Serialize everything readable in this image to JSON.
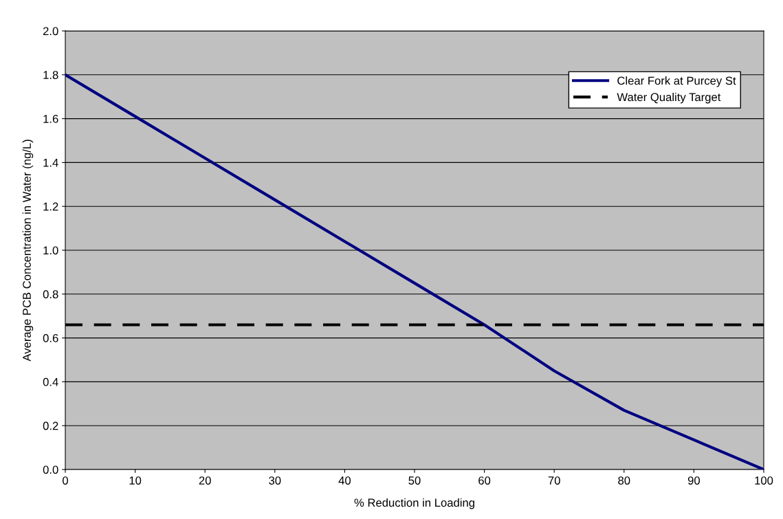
{
  "chart_data": {
    "type": "line",
    "xlabel": "% Reduction in Loading",
    "ylabel": "Average PCB Concentration in Water (ng/L)",
    "x": [
      0,
      10,
      20,
      30,
      40,
      50,
      60,
      70,
      80,
      90,
      100
    ],
    "series": [
      {
        "name": "Clear Fork at Purcey St",
        "color": "#000080",
        "line_style": "solid",
        "values": [
          1.8,
          1.61,
          1.42,
          1.23,
          1.04,
          0.85,
          0.66,
          0.45,
          0.27,
          0.135,
          0.0
        ]
      },
      {
        "name": "Water Quality Target",
        "color": "#000000",
        "line_style": "dashed",
        "values": [
          0.66,
          0.66,
          0.66,
          0.66,
          0.66,
          0.66,
          0.66,
          0.66,
          0.66,
          0.66,
          0.66
        ]
      }
    ],
    "xlim": [
      0,
      100
    ],
    "xticks": [
      0,
      10,
      20,
      30,
      40,
      50,
      60,
      70,
      80,
      90,
      100
    ],
    "ylim": [
      0,
      2
    ],
    "yticks": [
      {
        "value": 0,
        "label": "0.0"
      },
      {
        "value": 0.2,
        "label": "0.2"
      },
      {
        "value": 0.4,
        "label": "0.4"
      },
      {
        "value": 0.6,
        "label": "0.6"
      },
      {
        "value": 0.8,
        "label": "0.8"
      },
      {
        "value": 1.0,
        "label": "1.0"
      },
      {
        "value": 1.2,
        "label": "1.2"
      },
      {
        "value": 1.4,
        "label": "1.4"
      },
      {
        "value": 1.6,
        "label": "1.6"
      },
      {
        "value": 1.8,
        "label": "1.8"
      },
      {
        "value": 2.0,
        "label": "2.0"
      }
    ],
    "grid": "y",
    "legend": "top right",
    "marker": "none"
  }
}
